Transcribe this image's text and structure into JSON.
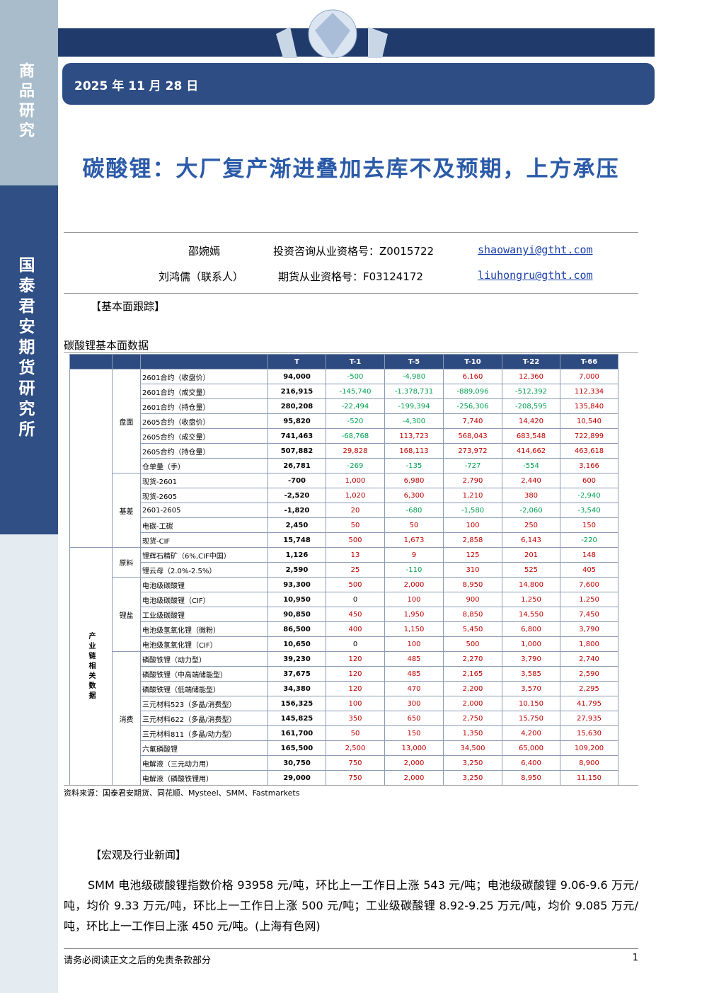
{
  "sidebar": {
    "top": "商品研究",
    "bottom": "国泰君安期货研究所"
  },
  "header": {
    "date": "2025 年 11 月 28 日",
    "title": "碳酸锂：大厂复产渐进叠加去库不及预期，上方承压"
  },
  "authors": [
    {
      "name": "邵婉嫣",
      "qualification": "投资咨询从业资格号：Z0015722",
      "email": "shaowanyi@gtht.com"
    },
    {
      "name": "刘鸿儒（联系人）",
      "qualification": "期货从业资格号：F03124172",
      "email": "liuhongru@gtht.com"
    }
  ],
  "section1": "【基本面跟踪】",
  "table": {
    "caption": "碳酸锂基本面数据",
    "header": [
      "T",
      "T-1",
      "T-5",
      "T-10",
      "T-22",
      "T-66"
    ],
    "blocks": [
      {
        "groups": [
          {
            "name": "盘面",
            "rows": [
              [
                "2601合约（收盘价）",
                "94,000",
                "-500",
                "-4,980",
                "6,160",
                "12,360",
                "7,000"
              ],
              [
                "2601合约（成交量）",
                "216,915",
                "-145,740",
                "-1,378,731",
                "-889,096",
                "-512,392",
                "112,334"
              ],
              [
                "2601合约（持仓量）",
                "280,208",
                "-22,494",
                "-199,394",
                "-256,306",
                "-208,595",
                "135,840"
              ],
              [
                "2605合约（收盘价）",
                "95,820",
                "-520",
                "-4,300",
                "7,740",
                "14,420",
                "10,540"
              ],
              [
                "2605合约（成交量）",
                "741,463",
                "-68,768",
                "113,723",
                "568,043",
                "683,548",
                "722,899"
              ],
              [
                "2605合约（持仓量）",
                "507,882",
                "29,828",
                "168,113",
                "273,972",
                "414,662",
                "463,618"
              ],
              [
                "仓单量（手）",
                "26,781",
                "-269",
                "-135",
                "-727",
                "-554",
                "3,166"
              ]
            ]
          },
          {
            "name": "基差",
            "rows": [
              [
                "现货-2601",
                "-700",
                "1,000",
                "6,980",
                "2,790",
                "2,440",
                "600"
              ],
              [
                "现货-2605",
                "-2,520",
                "1,020",
                "6,300",
                "1,210",
                "380",
                "-2,940"
              ],
              [
                "2601-2605",
                "-1,820",
                "20",
                "-680",
                "-1,580",
                "-2,060",
                "-3,540"
              ],
              [
                "电碳-工碳",
                "2,450",
                "50",
                "50",
                "100",
                "250",
                "150"
              ],
              [
                "现货-CIF",
                "15,748",
                "500",
                "1,673",
                "2,858",
                "6,143",
                "-220"
              ]
            ]
          }
        ]
      },
      {
        "name": "产业链相关数据",
        "groups": [
          {
            "name": "原料",
            "rows": [
              [
                "锂辉石精矿（6%,CIF中国）",
                "1,126",
                "13",
                "9",
                "125",
                "201",
                "148"
              ],
              [
                "锂云母（2.0%-2.5%）",
                "2,590",
                "25",
                "-110",
                "310",
                "525",
                "405"
              ]
            ]
          },
          {
            "name": "锂盐",
            "rows": [
              [
                "电池级碳酸锂",
                "93,300",
                "500",
                "2,000",
                "8,950",
                "14,800",
                "7,600"
              ],
              [
                "电池级碳酸锂（CIF）",
                "10,950",
                "0",
                "100",
                "900",
                "1,250",
                "1,250"
              ],
              [
                "工业级碳酸锂",
                "90,850",
                "450",
                "1,950",
                "8,850",
                "14,550",
                "7,450"
              ],
              [
                "电池级氢氧化锂（微粉）",
                "86,500",
                "400",
                "1,150",
                "5,450",
                "6,800",
                "3,790"
              ],
              [
                "电池级氢氧化锂（CIF）",
                "10,650",
                "0",
                "100",
                "500",
                "1,000",
                "1,800"
              ]
            ]
          },
          {
            "name": "消费",
            "rows": [
              [
                "磷酸铁锂（动力型）",
                "39,230",
                "120",
                "485",
                "2,270",
                "3,790",
                "2,740"
              ],
              [
                "磷酸铁锂（中高端储能型）",
                "37,675",
                "120",
                "485",
                "2,165",
                "3,585",
                "2,590"
              ],
              [
                "磷酸铁锂（低端储能型）",
                "34,380",
                "120",
                "470",
                "2,200",
                "3,570",
                "2,295"
              ],
              [
                "三元材料523（多晶/消费型）",
                "156,325",
                "100",
                "300",
                "2,000",
                "10,150",
                "41,795"
              ],
              [
                "三元材料622（多晶/消费型）",
                "145,825",
                "350",
                "650",
                "2,750",
                "15,750",
                "27,935"
              ],
              [
                "三元材料811（多晶/动力型）",
                "161,700",
                "50",
                "150",
                "1,350",
                "4,200",
                "15,630"
              ],
              [
                "六氟磷酸锂",
                "165,500",
                "2,500",
                "13,000",
                "34,500",
                "65,000",
                "109,200"
              ],
              [
                "电解液（三元动力用）",
                "30,750",
                "750",
                "2,000",
                "3,250",
                "6,400",
                "8,900"
              ],
              [
                "电解液（磷酸铁锂用）",
                "29,000",
                "750",
                "2,000",
                "3,250",
                "8,950",
                "11,150"
              ]
            ]
          }
        ]
      }
    ],
    "source": "资料来源：国泰君安期货、同花顺、Mysteel、SMM、Fastmarkets"
  },
  "section2": "【宏观及行业新闻】",
  "paragraph": "SMM 电池级碳酸锂指数价格 93958 元/吨，环比上一工作日上涨 543 元/吨；电池级碳酸锂 9.06-9.6 万元/吨，均价 9.33 万元/吨，环比上一工作日上涨 500 元/吨；工业级碳酸锂 8.92-9.25 万元/吨，均价 9.085 万元/吨，环比上一工作日上涨 450 元/吨。(上海有色网)",
  "footer": {
    "disclaimer": "请务必阅读正文之后的免责条款部分",
    "page": "1"
  }
}
